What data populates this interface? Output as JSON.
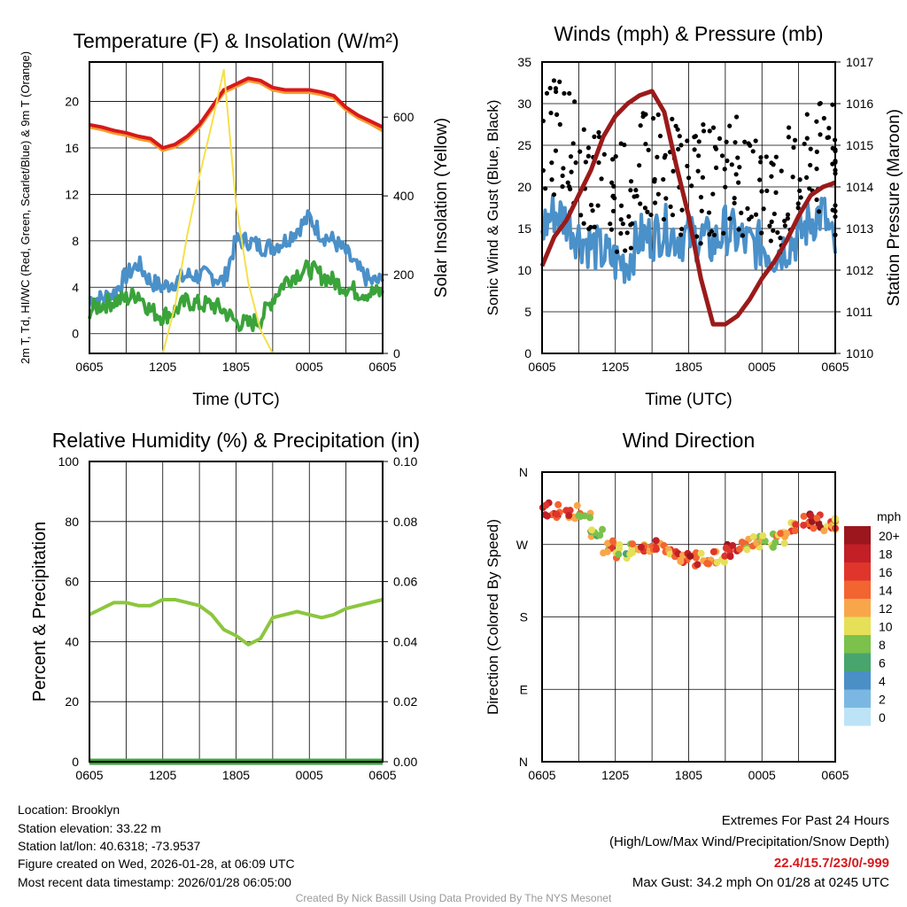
{
  "chart_data": [
    {
      "type": "line",
      "title": "Temperature (F) & Insolation (W/m²)",
      "xlabel": "Time (UTC)",
      "ylabel": "2m T, Td, HI/WC (Red, Green, Scarlet/Blue) & 9m T (Orange)",
      "ylabel2": "Solar Insolation (Yellow)",
      "ylim": [
        -1.7,
        23.4
      ],
      "y2lim": [
        0,
        740
      ],
      "yticks": [
        0,
        4,
        8,
        12,
        16,
        20
      ],
      "y2ticks": [
        0,
        200,
        400,
        600
      ],
      "xticks": [
        "0605",
        "1205",
        "1805",
        "0005",
        "0605"
      ],
      "series": [
        {
          "name": "9m T",
          "color": "#f59b30",
          "axis": "left",
          "values": [
            17.8,
            17.6,
            17.3,
            17.1,
            16.8,
            16.6,
            15.8,
            16.1,
            16.8,
            17.8,
            19.3,
            20.8,
            21.3,
            21.8,
            21.6,
            21,
            20.8,
            20.8,
            20.8,
            20.6,
            20.3,
            19.3,
            18.6,
            18.1,
            17.5
          ]
        },
        {
          "name": "2m T",
          "color": "#d7191c",
          "axis": "left",
          "values": [
            18,
            17.8,
            17.5,
            17.3,
            17,
            16.8,
            16,
            16.3,
            17,
            18,
            19.5,
            21,
            21.5,
            22,
            21.8,
            21.2,
            21,
            21,
            21,
            20.8,
            20.5,
            19.5,
            18.8,
            18.3,
            17.8
          ]
        },
        {
          "name": "Td",
          "color": "#4a90c9",
          "axis": "left",
          "values": [
            3,
            3,
            3.5,
            5,
            6,
            4.5,
            4,
            4.5,
            5,
            5,
            5,
            4.5,
            8,
            8,
            7.5,
            7.5,
            8,
            9,
            10,
            8.5,
            8,
            7,
            5.5,
            4.5,
            4.5
          ]
        },
        {
          "name": "HI/WC",
          "color": "#3aa33a",
          "axis": "left",
          "values": [
            2,
            2.5,
            2.8,
            3,
            3.5,
            2,
            1.5,
            2,
            2.8,
            2.5,
            2.5,
            2,
            1,
            0.8,
            1.2,
            3,
            4.5,
            5.2,
            5.6,
            5,
            4.5,
            4,
            3.6,
            3.5,
            3.5
          ]
        },
        {
          "name": "Solar",
          "color": "#f5e04a",
          "axis": "right",
          "values": [
            0,
            0,
            0,
            0,
            0,
            0,
            0,
            120,
            300,
            450,
            580,
            720,
            380,
            180,
            60,
            0,
            0,
            0,
            0,
            0,
            0,
            0,
            0,
            0,
            0
          ]
        }
      ]
    },
    {
      "type": "line",
      "title": "Winds (mph) & Pressure (mb)",
      "xlabel": "Time (UTC)",
      "ylabel": "Sonic Wind & Gust (Blue, Black)",
      "ylabel2": "Station Pressure (Maroon)",
      "ylim": [
        0,
        35
      ],
      "y2lim": [
        1010,
        1017
      ],
      "yticks": [
        0,
        5,
        10,
        15,
        20,
        25,
        30,
        35
      ],
      "y2ticks": [
        1010,
        1011,
        1012,
        1013,
        1014,
        1015,
        1016,
        1017
      ],
      "xticks": [
        "0605",
        "1205",
        "1805",
        "0005",
        "0605"
      ],
      "series": [
        {
          "name": "Sonic Wind",
          "color": "#4a90c9",
          "axis": "left",
          "values": [
            15,
            17,
            16,
            14,
            13,
            12,
            11,
            11,
            14,
            14,
            15,
            14,
            14,
            14,
            13,
            15,
            14,
            13,
            13,
            12,
            13,
            14,
            16,
            17,
            12
          ]
        },
        {
          "name": "Gust",
          "color": "#000000",
          "axis": "left",
          "type": "scatter",
          "values": [
            26,
            27,
            25,
            21,
            20,
            20,
            19,
            19,
            22,
            23,
            22,
            21,
            20,
            21,
            21,
            22,
            21,
            20,
            19,
            19,
            21,
            25,
            24,
            24,
            21
          ]
        },
        {
          "name": "Pressure",
          "color": "#9b1a1a",
          "axis": "right",
          "values": [
            1012.1,
            1012.8,
            1013.2,
            1013.8,
            1014.4,
            1015.2,
            1015.7,
            1016,
            1016.2,
            1016.3,
            1015.8,
            1014.5,
            1013.3,
            1011.8,
            1010.7,
            1010.7,
            1010.9,
            1011.3,
            1011.8,
            1012.2,
            1012.7,
            1013.3,
            1013.8,
            1014,
            1014.1
          ]
        }
      ]
    },
    {
      "type": "line",
      "title": "Relative Humidity (%) & Precipitation (in)",
      "ylabel": "Percent & Precipitation",
      "ylim": [
        0,
        100
      ],
      "y2lim": [
        0,
        0.1
      ],
      "yticks": [
        0,
        20,
        40,
        60,
        80,
        100
      ],
      "y2ticks": [
        "0.00",
        "0.02",
        "0.04",
        "0.06",
        "0.08",
        "0.10"
      ],
      "xticks": [
        "0605",
        "1205",
        "1805",
        "0005",
        "0605"
      ],
      "series": [
        {
          "name": "RH",
          "color": "#8cc63f",
          "axis": "left",
          "values": [
            49,
            51,
            53,
            53,
            52,
            52,
            54,
            54,
            53,
            52,
            49,
            44,
            42,
            39,
            41,
            48,
            49,
            50,
            49,
            48,
            49,
            51,
            52,
            53,
            54
          ]
        },
        {
          "name": "Precip",
          "color": "#3aa33a",
          "axis": "right",
          "values": [
            0,
            0,
            0,
            0,
            0,
            0,
            0,
            0,
            0,
            0,
            0,
            0,
            0,
            0,
            0,
            0,
            0,
            0,
            0,
            0,
            0,
            0,
            0,
            0,
            0
          ]
        }
      ]
    },
    {
      "type": "scatter",
      "title": "Wind Direction",
      "ylabel": "Direction (Colored By Speed)",
      "yticks": [
        "N",
        "E",
        "S",
        "W",
        "N"
      ],
      "xticks": [
        "0605",
        "1205",
        "1805",
        "0005",
        "0605"
      ],
      "direction_deg": [
        314,
        312,
        310,
        300,
        285,
        268,
        262,
        265,
        268,
        266,
        262,
        255,
        252,
        250,
        256,
        262,
        270,
        275,
        275,
        280,
        288,
        300,
        298,
        296,
        294
      ],
      "speed_mph": [
        17,
        18,
        16,
        12,
        10,
        13,
        11,
        12,
        15,
        16,
        14,
        16,
        18,
        15,
        14,
        17,
        13,
        12,
        11,
        12,
        14,
        18,
        17,
        15,
        14
      ],
      "colorbar": {
        "unit": "mph",
        "labels": [
          "20+",
          "18",
          "16",
          "14",
          "12",
          "10",
          "8",
          "6",
          "4",
          "2",
          "0"
        ],
        "colors": [
          "#9b161d",
          "#c21f27",
          "#e0352b",
          "#f26430",
          "#f8a649",
          "#e6df58",
          "#7bc14b",
          "#48a56e",
          "#4a8fc6",
          "#7ab8e3",
          "#bde3f7"
        ]
      }
    }
  ],
  "info": {
    "location": "Location: Brooklyn",
    "elevation": "Station elevation: 33.22 m",
    "latlon": "Station lat/lon: 40.6318; -73.9537",
    "created": "Figure created on Wed, 2026-01-28, at 06:09 UTC",
    "recent": "Most recent data timestamp: 2026/01/28 06:05:00"
  },
  "extremes": {
    "title": "Extremes For Past 24 Hours",
    "subtitle": "(High/Low/Max Wind/Precipitation/Snow Depth)",
    "values": "22.4/15.7/23/0/-999",
    "max_gust": "Max Gust: 34.2 mph On 01/28 at 0245 UTC"
  },
  "credit": "Created By Nick Bassill Using Data Provided By The NYS Mesonet"
}
